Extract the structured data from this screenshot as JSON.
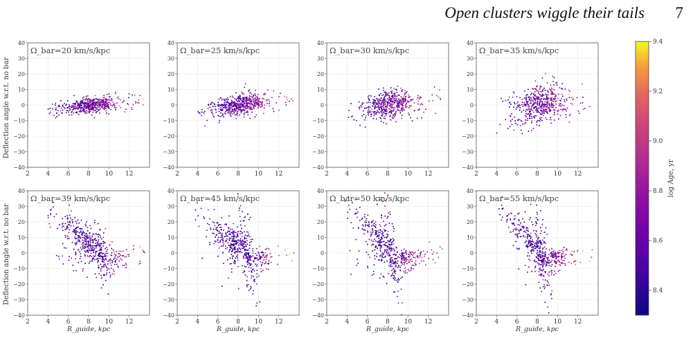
{
  "header": {
    "running_title": "Open clusters wiggle their tails",
    "page_number": "7"
  },
  "figure": {
    "ylabel": "Deflection angle w.r.t. no bar",
    "xlabel": "R_guide, kpc",
    "colorbar": {
      "label": "log Age, yr",
      "ticks": [
        8.4,
        8.6,
        8.8,
        9.0,
        9.2,
        9.4
      ],
      "range": [
        8.3,
        9.4
      ],
      "colormap": "plasma"
    }
  },
  "chart_data": [
    {
      "type": "scatter",
      "title": "Ω_bar=20 km/s/kpc",
      "pattern_speed": 20,
      "xlim": [
        2,
        14
      ],
      "ylim": [
        -40,
        40
      ],
      "xticks": [
        2,
        4,
        6,
        8,
        10,
        12
      ],
      "yticks": [
        -40,
        -30,
        -20,
        -10,
        0,
        10,
        20,
        30,
        40
      ]
    },
    {
      "type": "scatter",
      "title": "Ω_bar=25 km/s/kpc",
      "pattern_speed": 25,
      "xlim": [
        2,
        14
      ],
      "ylim": [
        -40,
        40
      ],
      "xticks": [
        2,
        4,
        6,
        8,
        10,
        12
      ],
      "yticks": [
        -40,
        -30,
        -20,
        -10,
        0,
        10,
        20,
        30,
        40
      ]
    },
    {
      "type": "scatter",
      "title": "Ω_bar=30 km/s/kpc",
      "pattern_speed": 30,
      "xlim": [
        2,
        14
      ],
      "ylim": [
        -40,
        40
      ],
      "xticks": [
        2,
        4,
        6,
        8,
        10,
        12
      ],
      "yticks": [
        -40,
        -30,
        -20,
        -10,
        0,
        10,
        20,
        30,
        40
      ]
    },
    {
      "type": "scatter",
      "title": "Ω_bar=35 km/s/kpc",
      "pattern_speed": 35,
      "xlim": [
        2,
        14
      ],
      "ylim": [
        -40,
        40
      ],
      "xticks": [
        2,
        4,
        6,
        8,
        10,
        12
      ],
      "yticks": [
        -40,
        -30,
        -20,
        -10,
        0,
        10,
        20,
        30,
        40
      ]
    },
    {
      "type": "scatter",
      "title": "Ω_bar=39 km/s/kpc",
      "pattern_speed": 39,
      "xlim": [
        2,
        14
      ],
      "ylim": [
        -40,
        40
      ],
      "xticks": [
        2,
        4,
        6,
        8,
        10,
        12
      ],
      "yticks": [
        -40,
        -30,
        -20,
        -10,
        0,
        10,
        20,
        30,
        40
      ]
    },
    {
      "type": "scatter",
      "title": "Ω_bar=45 km/s/kpc",
      "pattern_speed": 45,
      "xlim": [
        2,
        14
      ],
      "ylim": [
        -40,
        40
      ],
      "xticks": [
        2,
        4,
        6,
        8,
        10,
        12
      ],
      "yticks": [
        -40,
        -30,
        -20,
        -10,
        0,
        10,
        20,
        30,
        40
      ]
    },
    {
      "type": "scatter",
      "title": "Ω_bar=50 km/s/kpc",
      "pattern_speed": 50,
      "xlim": [
        2,
        14
      ],
      "ylim": [
        -40,
        40
      ],
      "xticks": [
        2,
        4,
        6,
        8,
        10,
        12
      ],
      "yticks": [
        -40,
        -30,
        -20,
        -10,
        0,
        10,
        20,
        30,
        40
      ]
    },
    {
      "type": "scatter",
      "title": "Ω_bar=55 km/s/kpc",
      "pattern_speed": 55,
      "xlim": [
        2,
        14
      ],
      "ylim": [
        -40,
        40
      ],
      "xticks": [
        2,
        4,
        6,
        8,
        10,
        12
      ],
      "yticks": [
        -40,
        -30,
        -20,
        -10,
        0,
        10,
        20,
        30,
        40
      ]
    }
  ]
}
